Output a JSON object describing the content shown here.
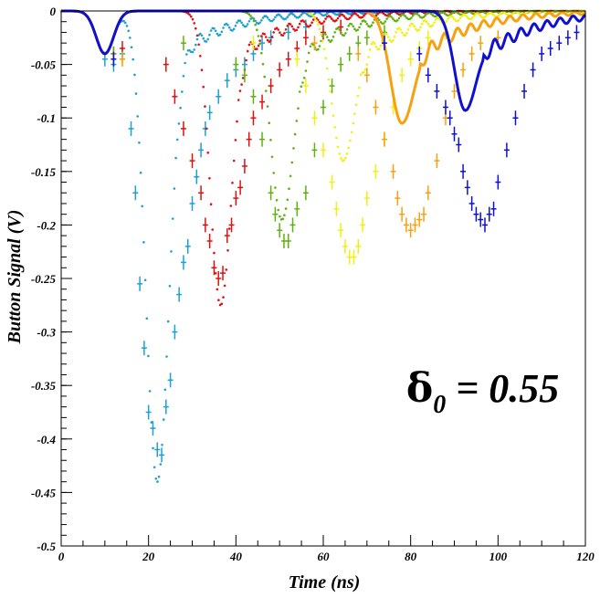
{
  "chart_data": {
    "type": "scatter",
    "xlabel": "Time (ns)",
    "ylabel": "Button Signal (V)",
    "xlim": [
      0,
      120
    ],
    "ylim": [
      -0.5,
      0
    ],
    "x_ticks": [
      0,
      20,
      40,
      60,
      80,
      100,
      120
    ],
    "y_ticks": [
      0,
      -0.05,
      -0.1,
      -0.15,
      -0.2,
      -0.25,
      -0.3,
      -0.35,
      -0.4,
      -0.45,
      -0.5
    ],
    "x_tick_labels": [
      "0",
      "20",
      "40",
      "60",
      "80",
      "100",
      "120"
    ],
    "y_tick_labels": [
      "0",
      "-0.05",
      "-0.1",
      "-0.15",
      "-0.2",
      "-0.25",
      "-0.3",
      "-0.35",
      "-0.4",
      "-0.45",
      "-0.5"
    ],
    "annotation": {
      "symbol": "δ",
      "subscript": "0",
      "text": " = 0.55",
      "x": 79,
      "y": -0.365
    },
    "grid": false,
    "legend": "none",
    "series": [
      {
        "color": "#1ea0d0",
        "dip_center": 22.0,
        "dip_depth": 0.44,
        "width": 2.6,
        "data_points": [
          [
            10,
            -0.045
          ],
          [
            12,
            -0.05
          ],
          [
            14,
            -0.04
          ],
          [
            16,
            -0.11
          ],
          [
            17,
            -0.17
          ],
          [
            18,
            -0.255
          ],
          [
            19,
            -0.315
          ],
          [
            20,
            -0.375
          ],
          [
            21,
            -0.39
          ],
          [
            22,
            -0.41
          ],
          [
            23,
            -0.415
          ],
          [
            24,
            -0.37
          ],
          [
            25,
            -0.345
          ],
          [
            26,
            -0.3
          ],
          [
            27,
            -0.265
          ],
          [
            28,
            -0.235
          ],
          [
            29,
            -0.22
          ],
          [
            30,
            -0.18
          ],
          [
            31,
            -0.155
          ],
          [
            32,
            -0.13
          ],
          [
            33,
            -0.11
          ],
          [
            34,
            -0.095
          ],
          [
            36,
            -0.08
          ],
          [
            38,
            -0.065
          ],
          [
            40,
            -0.055
          ],
          [
            42,
            -0.05
          ],
          [
            44,
            -0.04
          ],
          [
            46,
            -0.03
          ],
          [
            48,
            -0.025
          ],
          [
            52,
            -0.02
          ],
          [
            56,
            -0.015
          ]
        ]
      },
      {
        "color": "#e01010",
        "dip_center": 36.5,
        "dip_depth": 0.275,
        "width": 2.4,
        "data_points": [
          [
            12,
            -0.04
          ],
          [
            14,
            -0.035
          ],
          [
            24,
            -0.05
          ],
          [
            26,
            -0.08
          ],
          [
            28,
            -0.11
          ],
          [
            30,
            -0.14
          ],
          [
            32,
            -0.17
          ],
          [
            33,
            -0.2
          ],
          [
            34,
            -0.215
          ],
          [
            35,
            -0.24
          ],
          [
            36,
            -0.25
          ],
          [
            37,
            -0.245
          ],
          [
            38,
            -0.21
          ],
          [
            39,
            -0.2
          ],
          [
            40,
            -0.175
          ],
          [
            41,
            -0.165
          ],
          [
            42,
            -0.145
          ],
          [
            43,
            -0.12
          ],
          [
            44,
            -0.1
          ],
          [
            46,
            -0.085
          ],
          [
            48,
            -0.07
          ],
          [
            50,
            -0.055
          ],
          [
            52,
            -0.045
          ],
          [
            54,
            -0.035
          ],
          [
            56,
            -0.025
          ],
          [
            60,
            -0.02
          ],
          [
            64,
            -0.015
          ]
        ]
      },
      {
        "color": "#60b010",
        "dip_center": 50.5,
        "dip_depth": 0.195,
        "width": 2.6,
        "data_points": [
          [
            12,
            -0.04
          ],
          [
            28,
            -0.03
          ],
          [
            40,
            -0.05
          ],
          [
            42,
            -0.06
          ],
          [
            44,
            -0.08
          ],
          [
            46,
            -0.12
          ],
          [
            48,
            -0.17
          ],
          [
            49,
            -0.19
          ],
          [
            50,
            -0.205
          ],
          [
            51,
            -0.215
          ],
          [
            52,
            -0.215
          ],
          [
            53,
            -0.2
          ],
          [
            54,
            -0.185
          ],
          [
            56,
            -0.17
          ],
          [
            58,
            -0.13
          ],
          [
            60,
            -0.09
          ],
          [
            62,
            -0.07
          ],
          [
            64,
            -0.05
          ],
          [
            66,
            -0.04
          ],
          [
            68,
            -0.03
          ],
          [
            70,
            -0.025
          ],
          [
            74,
            -0.02
          ]
        ]
      },
      {
        "color": "#f0f010",
        "dip_center": 64.5,
        "dip_depth": 0.14,
        "width": 2.6,
        "data_points": [
          [
            14,
            -0.045
          ],
          [
            44,
            -0.03
          ],
          [
            54,
            -0.045
          ],
          [
            56,
            -0.07
          ],
          [
            58,
            -0.1
          ],
          [
            60,
            -0.13
          ],
          [
            62,
            -0.16
          ],
          [
            63,
            -0.185
          ],
          [
            64,
            -0.205
          ],
          [
            65,
            -0.22
          ],
          [
            66,
            -0.23
          ],
          [
            67,
            -0.23
          ],
          [
            68,
            -0.22
          ],
          [
            69,
            -0.2
          ],
          [
            70,
            -0.175
          ],
          [
            72,
            -0.15
          ],
          [
            74,
            -0.12
          ],
          [
            76,
            -0.09
          ],
          [
            78,
            -0.06
          ],
          [
            80,
            -0.045
          ],
          [
            82,
            -0.035
          ],
          [
            84,
            -0.025
          ],
          [
            88,
            -0.02
          ]
        ]
      },
      {
        "color": "#f7a010",
        "dip_center": 78.0,
        "dip_depth": 0.105,
        "width": 2.6,
        "data_points": [
          [
            14,
            -0.045
          ],
          [
            58,
            -0.03
          ],
          [
            68,
            -0.04
          ],
          [
            70,
            -0.06
          ],
          [
            72,
            -0.09
          ],
          [
            74,
            -0.12
          ],
          [
            76,
            -0.15
          ],
          [
            77,
            -0.175
          ],
          [
            78,
            -0.19
          ],
          [
            79,
            -0.2
          ],
          [
            80,
            -0.205
          ],
          [
            81,
            -0.2
          ],
          [
            82,
            -0.195
          ],
          [
            83,
            -0.19
          ],
          [
            84,
            -0.17
          ],
          [
            86,
            -0.14
          ],
          [
            88,
            -0.1
          ],
          [
            90,
            -0.075
          ],
          [
            92,
            -0.055
          ],
          [
            94,
            -0.04
          ],
          [
            96,
            -0.03
          ],
          [
            100,
            -0.025
          ]
        ]
      },
      {
        "color": "#1010d0",
        "dip_center": 92.5,
        "dip_depth": 0.093,
        "width": 2.4,
        "data_points": [
          [
            12,
            -0.045
          ],
          [
            74,
            -0.03
          ],
          [
            82,
            -0.04
          ],
          [
            84,
            -0.06
          ],
          [
            86,
            -0.075
          ],
          [
            88,
            -0.09
          ],
          [
            89,
            -0.1
          ],
          [
            90,
            -0.115
          ],
          [
            91,
            -0.125
          ],
          [
            92,
            -0.15
          ],
          [
            93,
            -0.165
          ],
          [
            94,
            -0.18
          ],
          [
            95,
            -0.19
          ],
          [
            96,
            -0.195
          ],
          [
            97,
            -0.2
          ],
          [
            98,
            -0.19
          ],
          [
            99,
            -0.185
          ],
          [
            100,
            -0.16
          ],
          [
            102,
            -0.13
          ],
          [
            104,
            -0.1
          ],
          [
            106,
            -0.075
          ],
          [
            108,
            -0.055
          ],
          [
            110,
            -0.04
          ],
          [
            112,
            -0.035
          ],
          [
            114,
            -0.03
          ],
          [
            116,
            -0.025
          ],
          [
            118,
            -0.02
          ]
        ]
      }
    ]
  }
}
